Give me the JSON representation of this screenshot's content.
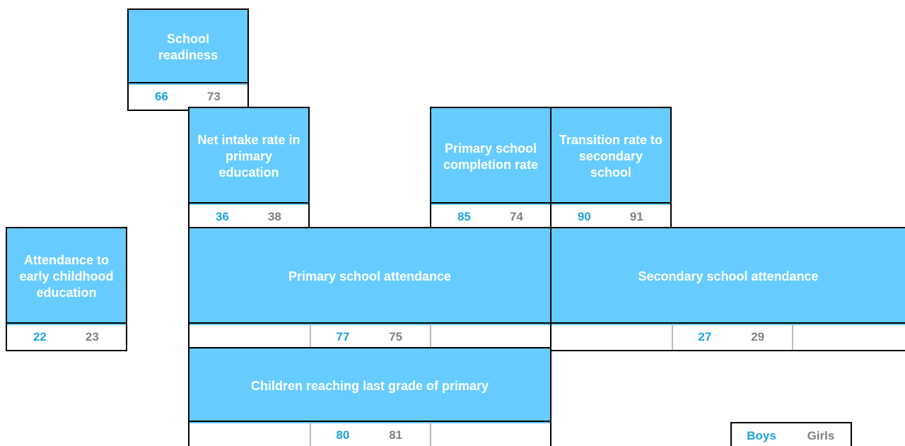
{
  "boxes": [
    {
      "label": "School readiness",
      "boys": 66,
      "girls": 73
    },
    {
      "label": "Net intake rate in primary education",
      "boys": 36,
      "girls": 38
    },
    {
      "label": "Primary school completion rate",
      "boys": 85,
      "girls": 74
    },
    {
      "label": "Transition rate to secondary school",
      "boys": 90,
      "girls": 91
    },
    {
      "label": "Attendance to early childhood education",
      "boys": 22,
      "girls": 23
    },
    {
      "label": "Primary school attendance",
      "boys": 77,
      "girls": 75
    },
    {
      "label": "Secondary school attendance",
      "boys": 27,
      "girls": 29
    },
    {
      "label": "Children reaching last grade of primary",
      "boys": 80,
      "girls": 81
    }
  ],
  "legend": {
    "boys": "Boys",
    "girls": "Girls"
  }
}
